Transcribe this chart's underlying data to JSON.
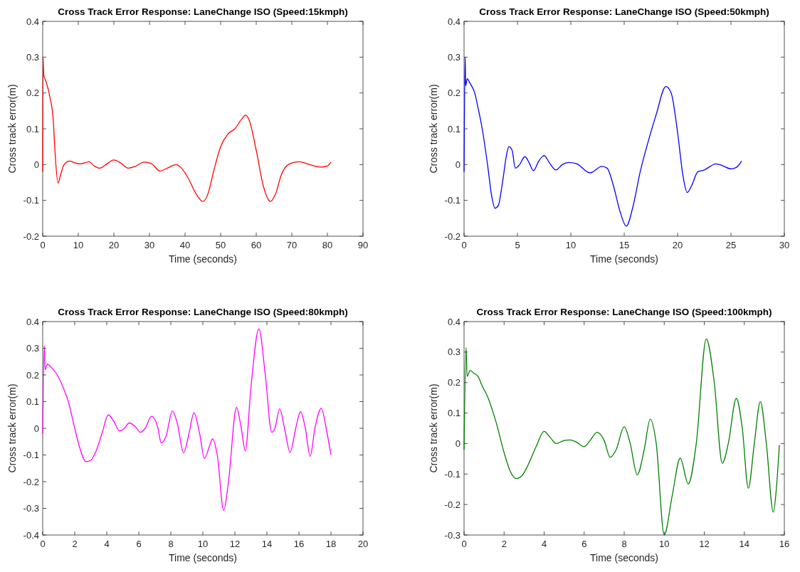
{
  "chart_data": [
    {
      "type": "line",
      "title": "Cross Track Error Response: LaneChange ISO (Speed:15kmph)",
      "xlabel": "Time (seconds)",
      "ylabel": "Cross track error(m)",
      "xlim": [
        0,
        90
      ],
      "xticks": [
        0,
        10,
        20,
        30,
        40,
        50,
        60,
        70,
        80,
        90
      ],
      "ylim": [
        -0.2,
        0.4
      ],
      "yticks": [
        -0.2,
        -0.1,
        0,
        0.1,
        0.2,
        0.3,
        0.4
      ],
      "grid": false,
      "series": [
        {
          "color": "#ff0000",
          "x": [
            0,
            0.1,
            0.3,
            1,
            2,
            3,
            3.5,
            4.3,
            5,
            6,
            7.5,
            9,
            10.5,
            13,
            14.5,
            16,
            17.5,
            20,
            22,
            24,
            26,
            28.5,
            30.5,
            33,
            35,
            37.5,
            39,
            41,
            43,
            45,
            46.5,
            48,
            50,
            52,
            54,
            56,
            57,
            58,
            60,
            62,
            64,
            65.5,
            67,
            69,
            72,
            75,
            78,
            80,
            81
          ],
          "values": [
            -0.02,
            0.3,
            0.25,
            0.23,
            0.19,
            0.12,
            0.03,
            -0.052,
            -0.03,
            0,
            0.01,
            0.005,
            0.002,
            0.008,
            -0.004,
            -0.01,
            -0.002,
            0.013,
            0.004,
            -0.01,
            -0.005,
            0.007,
            0.003,
            -0.018,
            -0.01,
            0,
            -0.01,
            -0.04,
            -0.08,
            -0.103,
            -0.08,
            -0.02,
            0.05,
            0.085,
            0.1,
            0.128,
            0.138,
            0.125,
            0.04,
            -0.06,
            -0.103,
            -0.08,
            -0.03,
            0,
            0.008,
            0,
            -0.007,
            -0.004,
            0.007
          ]
        }
      ]
    },
    {
      "type": "line",
      "title": "Cross Track Error Response: LaneChange ISO (Speed:50kmph)",
      "xlabel": "Time (seconds)",
      "ylabel": "Cross track error(m)",
      "xlim": [
        0,
        30
      ],
      "xticks": [
        0,
        5,
        10,
        15,
        20,
        25,
        30
      ],
      "ylim": [
        -0.2,
        0.4
      ],
      "yticks": [
        -0.2,
        -0.1,
        0,
        0.1,
        0.2,
        0.3,
        0.4
      ],
      "grid": false,
      "series": [
        {
          "color": "#0000ff",
          "x": [
            0,
            0.1,
            0.15,
            0.3,
            0.5,
            0.7,
            1,
            1.3,
            1.7,
            2.2,
            2.6,
            2.9,
            3.2,
            3.6,
            4,
            4.2,
            4.5,
            4.8,
            5.2,
            5.7,
            6.1,
            6.5,
            7,
            7.5,
            8,
            8.6,
            9.2,
            9.8,
            10.5,
            11.8,
            12.9,
            13.4,
            14,
            14.6,
            15.2,
            15.8,
            16.5,
            17.3,
            18,
            18.9,
            19.4,
            20,
            20.5,
            20.9,
            21.3,
            21.9,
            22.5,
            23.6,
            24.2,
            25,
            25.5,
            26
          ],
          "values": [
            -0.02,
            0.3,
            0.22,
            0.24,
            0.23,
            0.22,
            0.2,
            0.16,
            0.1,
            0,
            -0.09,
            -0.122,
            -0.115,
            -0.05,
            0.03,
            0.05,
            0.04,
            -0.01,
            0,
            0.022,
            0.005,
            -0.017,
            0.01,
            0.025,
            0.005,
            -0.015,
            0,
            0.006,
            0.003,
            -0.023,
            -0.005,
            -0.01,
            -0.06,
            -0.13,
            -0.172,
            -0.12,
            -0.02,
            0.07,
            0.14,
            0.218,
            0.2,
            0.09,
            -0.03,
            -0.078,
            -0.06,
            -0.02,
            -0.015,
            0.002,
            -0.003,
            -0.012,
            -0.008,
            0.01
          ]
        }
      ]
    },
    {
      "type": "line",
      "title": "Cross Track Error Response: LaneChange ISO (Speed:80kmph)",
      "xlabel": "Time (seconds)",
      "ylabel": "Cross track error(m)",
      "xlim": [
        0,
        20
      ],
      "xticks": [
        0,
        2,
        4,
        6,
        8,
        10,
        12,
        14,
        16,
        18,
        20
      ],
      "ylim": [
        -0.4,
        0.4
      ],
      "yticks": [
        -0.4,
        -0.3,
        -0.2,
        -0.1,
        0,
        0.1,
        0.2,
        0.3,
        0.4
      ],
      "grid": false,
      "series": [
        {
          "color": "#ff00ff",
          "x": [
            0,
            0.1,
            0.15,
            0.3,
            0.5,
            0.8,
            1,
            1.3,
            1.6,
            2,
            2.3,
            2.7,
            3,
            3.3,
            3.7,
            4.1,
            4.4,
            4.8,
            5.1,
            5.4,
            5.8,
            6.1,
            6.4,
            6.8,
            7.2,
            7.4,
            7.7,
            8.1,
            8.4,
            8.8,
            9.1,
            9.45,
            9.8,
            10.1,
            10.4,
            10.6,
            10.9,
            11.3,
            11.6,
            12.1,
            12.4,
            12.65,
            13,
            13.5,
            13.9,
            14.3,
            14.5,
            14.8,
            15.1,
            15.45,
            15.8,
            16.1,
            16.4,
            16.7,
            17,
            17.4,
            17.7,
            18
          ],
          "values": [
            -0.02,
            0.31,
            0.22,
            0.24,
            0.23,
            0.21,
            0.19,
            0.15,
            0.1,
            0,
            -0.07,
            -0.125,
            -0.12,
            -0.09,
            -0.02,
            0.05,
            0.03,
            -0.01,
            0,
            0.02,
            0.005,
            -0.015,
            0,
            0.045,
            0,
            -0.055,
            -0.03,
            0.065,
            0.02,
            -0.092,
            -0.03,
            0.058,
            -0.02,
            -0.113,
            -0.07,
            -0.04,
            -0.1,
            -0.308,
            -0.2,
            0.078,
            0,
            -0.085,
            0.15,
            0.373,
            0.2,
            -0.015,
            0,
            0.073,
            0,
            -0.09,
            0,
            0.062,
            0,
            -0.105,
            0,
            0.075,
            0,
            -0.1
          ]
        }
      ]
    },
    {
      "type": "line",
      "title": "Cross Track Error Response: LaneChange ISO (Speed:100kmph)",
      "xlabel": "Time (seconds)",
      "ylabel": "Cross track error(m)",
      "xlim": [
        0,
        16
      ],
      "xticks": [
        0,
        2,
        4,
        6,
        8,
        10,
        12,
        14,
        16
      ],
      "ylim": [
        -0.3,
        0.4
      ],
      "yticks": [
        -0.3,
        -0.2,
        -0.1,
        0,
        0.1,
        0.2,
        0.3,
        0.4
      ],
      "grid": false,
      "series": [
        {
          "color": "#008000",
          "x": [
            0,
            0.1,
            0.15,
            0.3,
            0.5,
            0.7,
            0.9,
            1.2,
            1.6,
            2,
            2.3,
            2.6,
            2.9,
            3.2,
            3.6,
            4,
            4.3,
            4.6,
            5,
            5.3,
            5.6,
            6,
            6.3,
            6.65,
            7,
            7.3,
            7.6,
            8,
            8.3,
            8.65,
            9,
            9.3,
            9.6,
            10,
            10.4,
            10.8,
            11.2,
            11.6,
            12.1,
            12.5,
            12.9,
            13.2,
            13.6,
            13.9,
            14.2,
            14.5,
            14.8,
            15.1,
            15.45,
            15.6,
            15.75
          ],
          "values": [
            -0.02,
            0.315,
            0.22,
            0.24,
            0.23,
            0.22,
            0.19,
            0.15,
            0.07,
            -0.03,
            -0.09,
            -0.115,
            -0.105,
            -0.07,
            -0.01,
            0.04,
            0.02,
            0,
            0.01,
            0.012,
            0.005,
            -0.01,
            0.01,
            0.037,
            0.01,
            -0.045,
            -0.02,
            0.055,
            0,
            -0.103,
            -0.02,
            0.08,
            0,
            -0.3,
            -0.17,
            -0.048,
            -0.133,
            0,
            0.343,
            0.2,
            -0.065,
            0,
            0.148,
            0.05,
            -0.147,
            0,
            0.138,
            0,
            -0.225,
            -0.15,
            -0.005
          ]
        }
      ]
    }
  ]
}
